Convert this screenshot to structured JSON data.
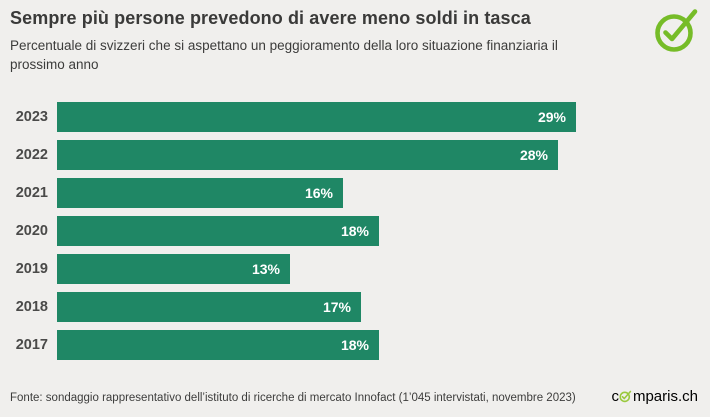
{
  "chart_data": {
    "type": "bar",
    "orientation": "horizontal",
    "title": "Sempre più persone prevedono di avere meno soldi in tasca",
    "subtitle_line1": "Percentuale di svizzeri che si aspettano un peggioramento della loro situazione finanziaria il",
    "subtitle_line2": "prossimo anno",
    "categories": [
      "2023",
      "2022",
      "2021",
      "2020",
      "2019",
      "2018",
      "2017"
    ],
    "values": [
      29,
      28,
      16,
      18,
      13,
      17,
      18
    ],
    "unit": "%",
    "xlim": [
      0,
      36.5
    ],
    "grid": false,
    "legend": "none",
    "bar_color": "#1f8765",
    "value_label_color": "#ffffff",
    "category_label_color": "#4a4a49"
  },
  "footer": {
    "source": "Fonte: sondaggio rappresentativo dell’istituto di ricerche di mercato Innofact (1’045 intervistati, novembre 2023)",
    "brand_prefix": "c",
    "brand_suffix": "mparis.ch"
  },
  "icons": {
    "logo_check": "comparis-check-circle-icon",
    "brand_o_check": "comparis-check-circle-icon"
  },
  "colors": {
    "background": "#f0efed",
    "title_text": "#3a3a39",
    "logo_green": "#76bc28",
    "brand_green": "#9ac93e"
  }
}
